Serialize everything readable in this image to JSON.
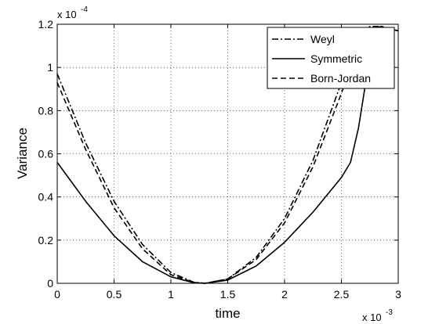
{
  "chart_data": {
    "type": "line",
    "xlabel": "time",
    "ylabel": "Variance",
    "x_exponent": "x 10",
    "x_exponent_power": "-3",
    "y_exponent": "x 10",
    "y_exponent_power": "-4",
    "xlim": [
      0,
      3
    ],
    "ylim": [
      0,
      1.2
    ],
    "x_ticks": [
      0,
      0.5,
      1,
      1.5,
      2,
      2.5,
      3
    ],
    "x_tick_labels": [
      "0",
      "0.5",
      "1",
      "1.5",
      "2",
      "2.5",
      "3"
    ],
    "y_ticks": [
      0,
      0.2,
      0.4,
      0.6,
      0.8,
      1,
      1.2
    ],
    "y_tick_labels": [
      "0",
      "0.2",
      "0.4",
      "0.6",
      "0.8",
      "1",
      "1.2"
    ],
    "grid": true,
    "legend_position": "top-right",
    "series": [
      {
        "name": "Weyl",
        "style": "dash-dot",
        "color": "#000000",
        "x": [
          0,
          0.25,
          0.5,
          0.75,
          1.0,
          1.2,
          1.3,
          1.5,
          1.75,
          2.0,
          2.25,
          2.5,
          2.65,
          2.75,
          2.85,
          3.0
        ],
        "y": [
          0.97,
          0.65,
          0.38,
          0.18,
          0.05,
          0.005,
          0.0,
          0.02,
          0.12,
          0.3,
          0.57,
          0.93,
          1.14,
          1.19,
          1.19,
          1.17
        ]
      },
      {
        "name": "Symmetric",
        "style": "solid",
        "color": "#000000",
        "x": [
          0,
          0.25,
          0.5,
          0.75,
          1.0,
          1.2,
          1.3,
          1.5,
          1.75,
          2.0,
          2.25,
          2.5,
          2.58,
          2.65,
          2.72,
          2.8,
          2.9,
          3.0
        ],
        "y": [
          0.56,
          0.38,
          0.22,
          0.1,
          0.03,
          0.003,
          0.0,
          0.015,
          0.08,
          0.19,
          0.33,
          0.49,
          0.56,
          0.72,
          0.95,
          1.12,
          1.18,
          1.17
        ]
      },
      {
        "name": "Born-Jordan",
        "style": "dashed",
        "color": "#000000",
        "x": [
          0,
          0.25,
          0.5,
          0.75,
          1.0,
          1.2,
          1.3,
          1.5,
          1.75,
          2.0,
          2.25,
          2.5,
          2.65,
          2.75,
          2.85,
          3.0
        ],
        "y": [
          0.93,
          0.62,
          0.35,
          0.16,
          0.04,
          0.004,
          0.0,
          0.02,
          0.11,
          0.28,
          0.54,
          0.88,
          1.1,
          1.17,
          1.19,
          1.17
        ]
      }
    ]
  }
}
